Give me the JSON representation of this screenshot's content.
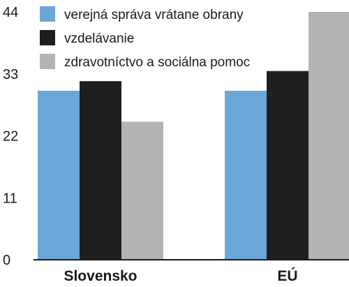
{
  "chart_data": {
    "type": "bar",
    "categories": [
      "Slovensko",
      "EÚ"
    ],
    "series": [
      {
        "name": "verejná správa vrátane obrany",
        "color": "#6ba6d8",
        "values": [
          30,
          30
        ]
      },
      {
        "name": "vzdelávanie",
        "color": "#1f1f1f",
        "values": [
          31.7,
          33.5
        ]
      },
      {
        "name": "zdravotníctvo a sociálna pomoc",
        "color": "#b3b3b3",
        "values": [
          24.5,
          44
        ]
      }
    ],
    "yticks": [
      "0",
      "11",
      "22",
      "33",
      "44"
    ],
    "ylim": [
      0,
      44
    ],
    "grid": false,
    "legend_position": "top-left"
  }
}
